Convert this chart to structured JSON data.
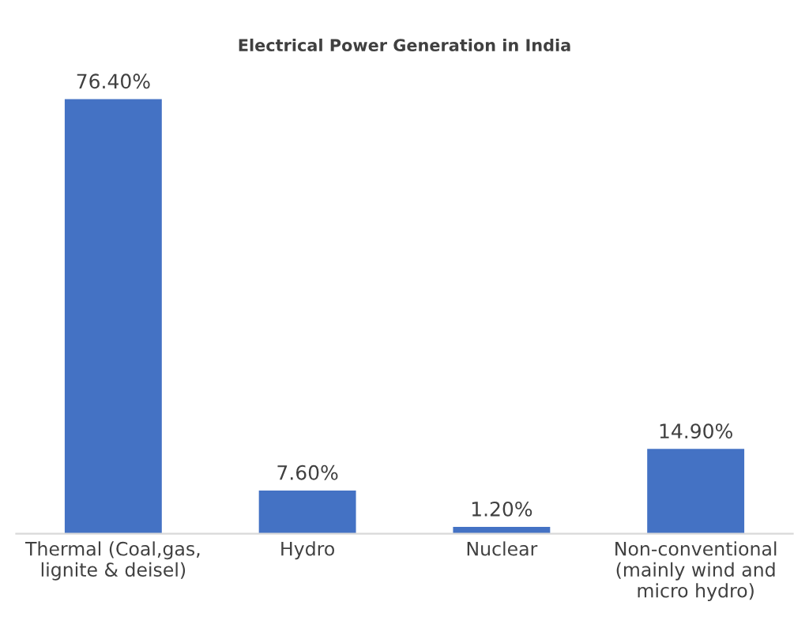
{
  "chart_data": {
    "type": "bar",
    "title": "Electrical Power Generation in India",
    "categories": [
      "Thermal (Coal,gas,\nlignite & deisel)",
      "Hydro",
      "Nuclear",
      "Non-conventional\n(mainly wind and\nmicro hydro)"
    ],
    "values": [
      76.4,
      7.6,
      1.2,
      14.9
    ],
    "value_labels": [
      "76.40%",
      "7.60%",
      "1.20%",
      "14.90%"
    ],
    "color": "#4472c4",
    "grid": false,
    "legend": false
  }
}
